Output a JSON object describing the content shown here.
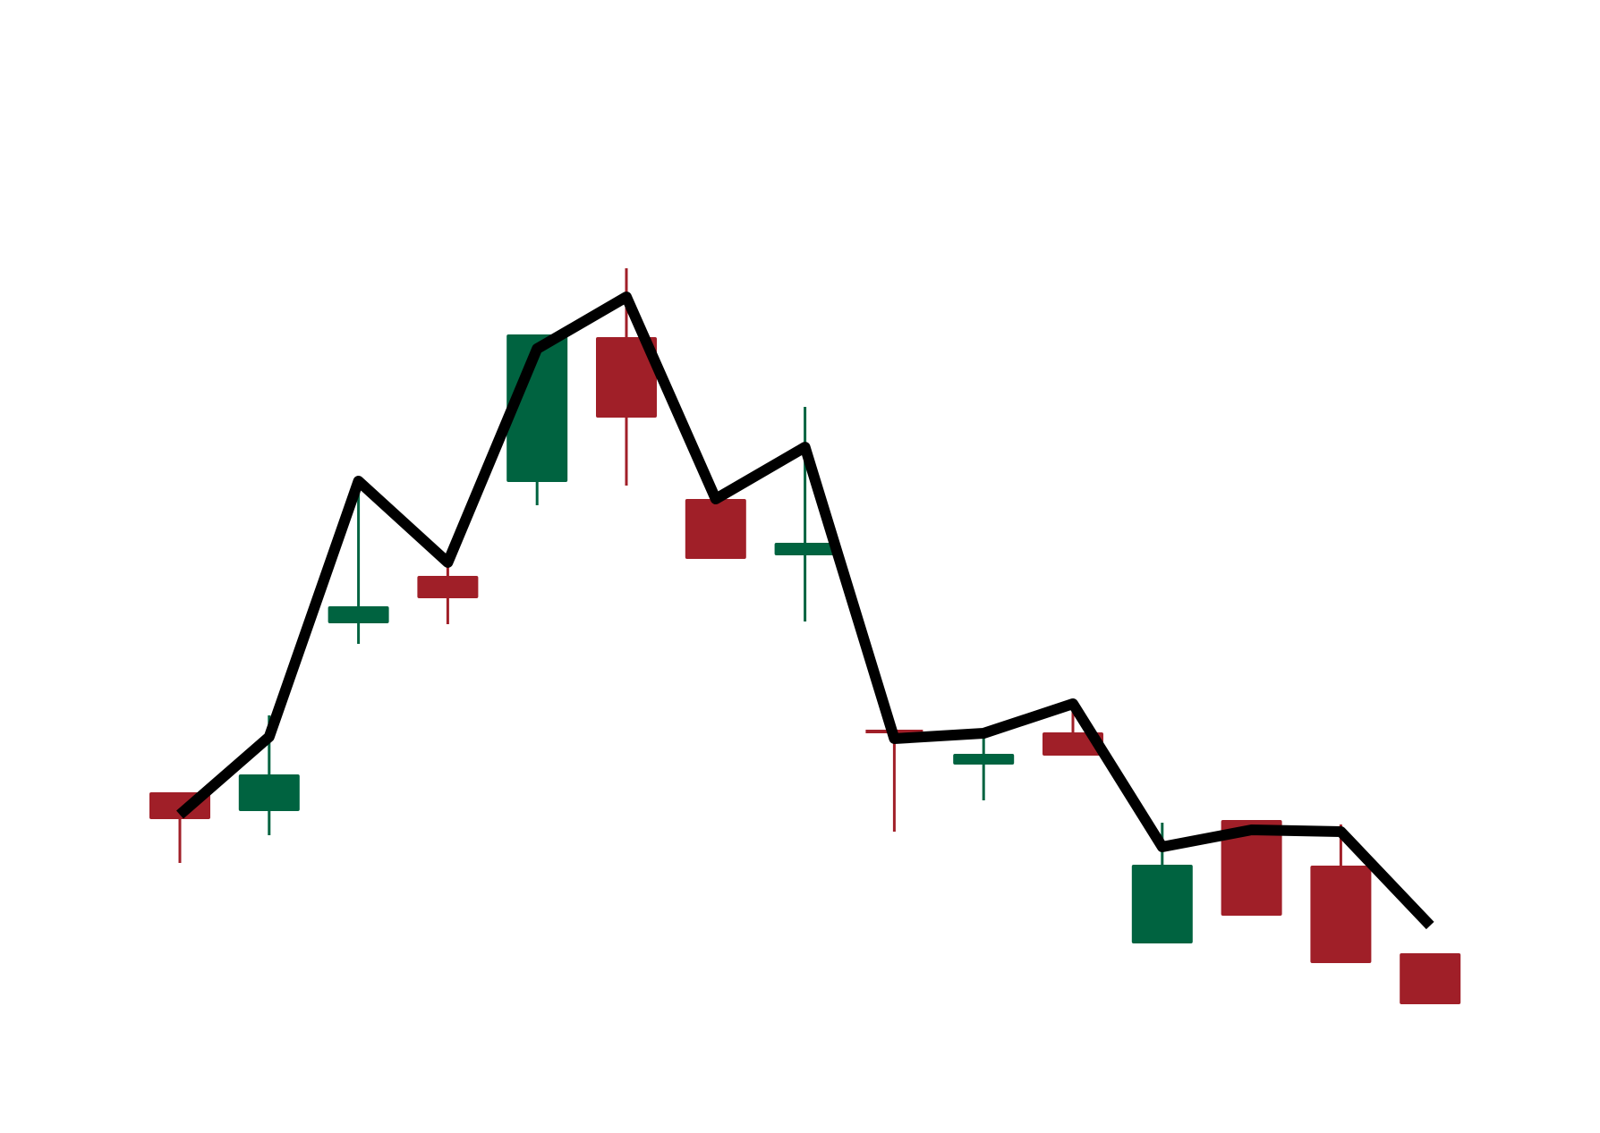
{
  "chart_data": {
    "type": "candlestick",
    "title": "",
    "xlabel": "",
    "ylabel": "",
    "grid": false,
    "legend": "none",
    "axes_visible": false,
    "ylim": [
      0,
      100
    ],
    "colors": {
      "up": "#006340",
      "down": "#A01F28",
      "line": "#000000",
      "background": "#FFFFFF"
    },
    "candles": [
      {
        "index": 1,
        "open": 33.3,
        "close": 30.5,
        "high": 33.3,
        "low": 25.5
      },
      {
        "index": 2,
        "open": 31.4,
        "close": 35.3,
        "high": 42.0,
        "low": 28.6
      },
      {
        "index": 3,
        "open": 52.4,
        "close": 54.1,
        "high": 68.1,
        "low": 50.0
      },
      {
        "index": 4,
        "open": 57.5,
        "close": 55.2,
        "high": 59.0,
        "low": 52.2
      },
      {
        "index": 5,
        "open": 68.2,
        "close": 84.5,
        "high": 84.5,
        "low": 65.5
      },
      {
        "index": 6,
        "open": 84.2,
        "close": 75.4,
        "high": 92.0,
        "low": 67.7
      },
      {
        "index": 7,
        "open": 66.1,
        "close": 59.6,
        "high": 67.3,
        "low": 59.5
      },
      {
        "index": 8,
        "open": 60.0,
        "close": 61.2,
        "high": 76.5,
        "low": 52.5
      },
      {
        "index": 9,
        "open": 40.2,
        "close": 40.0,
        "high": 40.2,
        "low": 29.0
      },
      {
        "index": 10,
        "open": 36.6,
        "close": 37.6,
        "high": 39.5,
        "low": 32.5
      },
      {
        "index": 11,
        "open": 40.0,
        "close": 37.6,
        "high": 42.5,
        "low": 37.6
      },
      {
        "index": 12,
        "open": 16.6,
        "close": 25.2,
        "high": 30.0,
        "low": 16.6
      },
      {
        "index": 13,
        "open": 30.2,
        "close": 19.7,
        "high": 30.2,
        "low": 19.7
      },
      {
        "index": 14,
        "open": 25.1,
        "close": 14.4,
        "high": 29.8,
        "low": 14.4
      },
      {
        "index": 15,
        "open": 15.3,
        "close": 9.8,
        "high": 15.3,
        "low": 9.8
      }
    ],
    "line_series": {
      "values": [
        30.9,
        39.6,
        68.2,
        59.1,
        83.0,
        88.8,
        66.2,
        72.0,
        39.4,
        40.0,
        43.3,
        27.3,
        29.2,
        29.0,
        18.5
      ]
    }
  }
}
